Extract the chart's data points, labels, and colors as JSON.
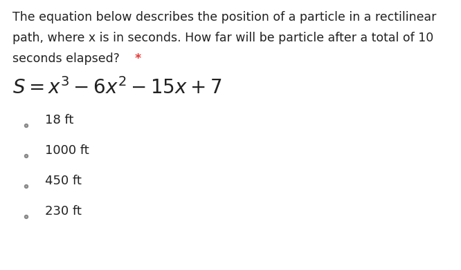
{
  "background_color": "#ffffff",
  "question_text_line1": "The equation below describes the position of a particle in a rectilinear",
  "question_text_line2": "path, where x is in seconds. How far will be particle after a total of 10",
  "question_text_line3": "seconds elapsed?",
  "asterisk": "*",
  "equation": "$S = x^3 - 6x^2 - 15x + 7$",
  "options": [
    "18 ft",
    "1000 ft",
    "450 ft",
    "230 ft"
  ],
  "text_color": "#212121",
  "asterisk_color": "#e53935",
  "question_fontsize": 12.5,
  "equation_fontsize": 20,
  "option_fontsize": 13,
  "circle_color": "#888888",
  "font_family": "DejaVu Sans"
}
